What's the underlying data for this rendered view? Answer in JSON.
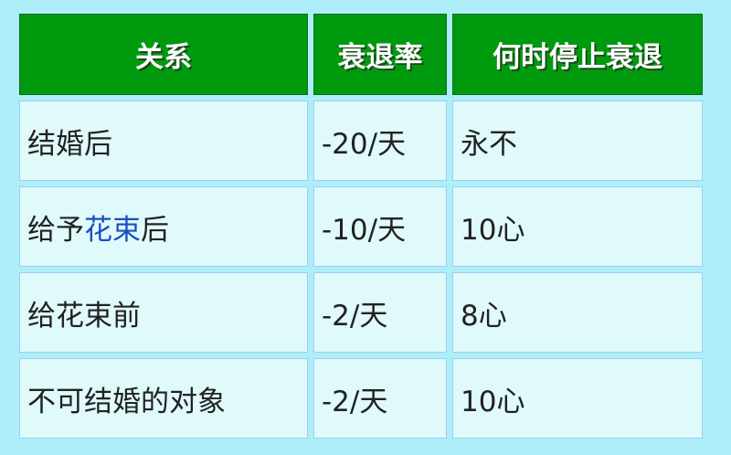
{
  "table": {
    "headers": [
      "关系",
      "衰退率",
      "何时停止衰退"
    ],
    "rows": [
      {
        "relationship": [
          "结婚后"
        ],
        "rate": "-20/天",
        "stop": "永不"
      },
      {
        "relationship": [
          "给予",
          "花束",
          "后"
        ],
        "rate": "-10/天",
        "stop": "10心"
      },
      {
        "relationship": [
          "给花束前"
        ],
        "rate": "-2/天",
        "stop": "8心"
      },
      {
        "relationship": [
          "不可结婚的对象"
        ],
        "rate": "-2/天",
        "stop": "10心"
      }
    ]
  },
  "colors": {
    "header_bg": "#009a0e",
    "cell_bg": "#e0fafb",
    "page_bg": "#aeeef8",
    "link": "#1a4fc0"
  }
}
